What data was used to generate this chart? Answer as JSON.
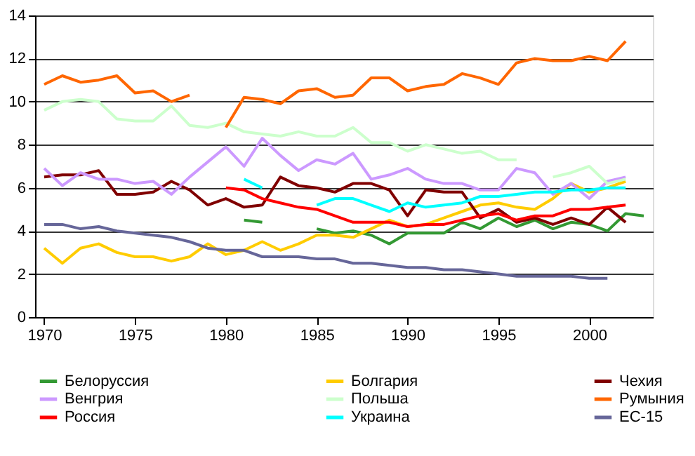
{
  "chart_data": {
    "type": "line",
    "x": [
      1970,
      1971,
      1972,
      1973,
      1974,
      1975,
      1976,
      1977,
      1978,
      1979,
      1980,
      1981,
      1982,
      1983,
      1984,
      1985,
      1986,
      1987,
      1988,
      1989,
      1990,
      1991,
      1992,
      1993,
      1994,
      1995,
      1996,
      1997,
      1998,
      1999,
      2000,
      2001,
      2002,
      2003
    ],
    "xlim": [
      1969.5,
      2003.5
    ],
    "xticks": [
      1970,
      1975,
      1980,
      1985,
      1990,
      1995,
      2000
    ],
    "ylim": [
      0,
      14
    ],
    "yticks": [
      0,
      2,
      4,
      6,
      8,
      10,
      12,
      14
    ],
    "grid": "y",
    "legend": "bottom",
    "marker": "none",
    "line_style": "solid",
    "series": [
      {
        "name": "Белоруссия",
        "color": "#339933",
        "values": [
          null,
          null,
          null,
          null,
          null,
          null,
          null,
          null,
          null,
          null,
          null,
          4.5,
          4.4,
          null,
          null,
          4.1,
          3.9,
          4.0,
          3.8,
          3.4,
          3.9,
          3.9,
          3.9,
          4.4,
          4.1,
          4.6,
          4.2,
          4.5,
          4.1,
          4.4,
          4.3,
          4.0,
          4.8,
          4.7
        ]
      },
      {
        "name": "Болгария",
        "color": "#ffcc00",
        "values": [
          3.2,
          2.5,
          3.2,
          3.4,
          3.0,
          2.8,
          2.8,
          2.6,
          2.8,
          3.4,
          2.9,
          3.1,
          3.5,
          3.1,
          3.4,
          3.8,
          3.8,
          3.7,
          4.1,
          4.5,
          4.2,
          4.3,
          4.6,
          4.9,
          5.2,
          5.3,
          5.1,
          5.0,
          5.5,
          6.2,
          5.8,
          6.0,
          6.3,
          null
        ]
      },
      {
        "name": "Чехия",
        "color": "#800000",
        "values": [
          6.5,
          6.6,
          6.6,
          6.8,
          5.7,
          5.7,
          5.8,
          6.3,
          5.9,
          5.2,
          5.5,
          5.1,
          5.2,
          6.5,
          6.1,
          6.0,
          5.8,
          6.2,
          6.2,
          5.9,
          4.7,
          5.9,
          5.8,
          5.8,
          4.6,
          5.0,
          4.4,
          4.6,
          4.3,
          4.6,
          4.3,
          5.1,
          4.4,
          null
        ]
      },
      {
        "name": "Венгрия",
        "color": "#cc99ff",
        "values": [
          6.9,
          6.1,
          6.7,
          6.4,
          6.4,
          6.2,
          6.3,
          5.7,
          6.5,
          7.2,
          7.9,
          7.0,
          8.3,
          7.5,
          6.8,
          7.3,
          7.1,
          7.6,
          6.4,
          6.6,
          6.9,
          6.4,
          6.2,
          6.2,
          5.9,
          5.9,
          6.9,
          6.7,
          5.7,
          6.2,
          5.5,
          6.3,
          6.5,
          null
        ]
      },
      {
        "name": "Польша",
        "color": "#ccffcc",
        "values": [
          9.6,
          10.0,
          10.1,
          10.0,
          9.2,
          9.1,
          9.1,
          9.8,
          8.9,
          8.8,
          9.0,
          8.6,
          8.5,
          8.4,
          8.6,
          8.4,
          8.4,
          8.8,
          8.1,
          8.1,
          7.7,
          8.0,
          7.8,
          7.6,
          7.7,
          7.3,
          7.3,
          null,
          6.5,
          6.7,
          7.0,
          6.2,
          6.4,
          null
        ]
      },
      {
        "name": "Румыния",
        "color": "#ff6600",
        "values": [
          10.8,
          11.2,
          10.9,
          11.0,
          11.2,
          10.4,
          10.5,
          10.0,
          10.3,
          null,
          8.8,
          10.2,
          10.1,
          9.9,
          10.5,
          10.6,
          10.2,
          10.3,
          11.1,
          11.1,
          10.5,
          10.7,
          10.8,
          11.3,
          11.1,
          10.8,
          11.8,
          12.0,
          11.9,
          11.9,
          12.1,
          11.9,
          12.8,
          null
        ]
      },
      {
        "name": "Россия",
        "color": "#ff0000",
        "values": [
          null,
          null,
          null,
          null,
          null,
          null,
          null,
          null,
          null,
          null,
          6.0,
          5.9,
          5.5,
          5.3,
          5.1,
          5.0,
          4.7,
          4.4,
          4.4,
          4.4,
          4.2,
          4.3,
          4.3,
          4.5,
          4.7,
          4.8,
          4.5,
          4.7,
          4.7,
          5.0,
          5.0,
          5.1,
          5.2,
          null
        ]
      },
      {
        "name": "Украина",
        "color": "#00ffff",
        "values": [
          null,
          null,
          null,
          null,
          null,
          null,
          null,
          null,
          null,
          null,
          null,
          6.4,
          6.0,
          null,
          null,
          5.2,
          5.5,
          5.5,
          5.2,
          4.9,
          5.3,
          5.1,
          5.2,
          5.3,
          5.6,
          5.6,
          5.7,
          5.8,
          5.8,
          5.9,
          5.9,
          6.0,
          6.0,
          null
        ]
      },
      {
        "name": "ЕС-15",
        "color": "#666699",
        "values": [
          4.3,
          4.3,
          4.1,
          4.2,
          4.0,
          3.9,
          3.8,
          3.7,
          3.5,
          3.2,
          3.1,
          3.1,
          2.8,
          2.8,
          2.8,
          2.7,
          2.7,
          2.5,
          2.5,
          2.4,
          2.3,
          2.3,
          2.2,
          2.2,
          2.1,
          2.0,
          1.9,
          1.9,
          1.9,
          1.9,
          1.8,
          1.8,
          null,
          null
        ]
      }
    ]
  }
}
